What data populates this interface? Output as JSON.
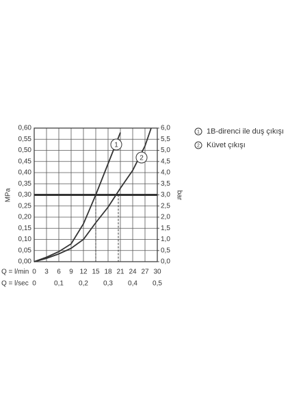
{
  "chart_data": {
    "type": "line",
    "x": [
      0,
      3,
      6,
      9,
      12,
      15,
      18,
      21,
      24,
      27,
      28.5
    ],
    "series": [
      {
        "name": "1B-direnci ile duş çıkışı",
        "label": "1",
        "color": "#333333",
        "values": [
          0,
          0.02,
          0.045,
          0.08,
          0.17,
          0.3,
          0.44,
          0.58,
          null,
          null,
          null
        ]
      },
      {
        "name": "Küvet çıkışı",
        "label": "2",
        "color": "#333333",
        "values": [
          0,
          0.015,
          0.035,
          0.06,
          0.1,
          0.175,
          0.245,
          0.33,
          0.41,
          0.52,
          0.6
        ]
      }
    ],
    "xlim": [
      0,
      30
    ],
    "xticks": [
      0,
      3,
      6,
      9,
      12,
      15,
      18,
      21,
      24,
      27,
      30
    ],
    "x2lim": [
      0,
      0.5
    ],
    "x2ticks": [
      0,
      {
        "value": 0.1,
        "label": "0,1"
      },
      {
        "value": 0.2,
        "label": "0,2"
      },
      {
        "value": 0.3,
        "label": "0,3"
      },
      {
        "value": 0.4,
        "label": "0,4"
      },
      {
        "value": 0.5,
        "label": "0,5"
      }
    ],
    "xlabel": "Q = l/min",
    "x2label": "Q = l/sec",
    "ylim": [
      0,
      0.6
    ],
    "yticks": [
      {
        "value": 0,
        "label": "0,00"
      },
      {
        "value": 0.05,
        "label": "0,05"
      },
      {
        "value": 0.1,
        "label": "0,10"
      },
      {
        "value": 0.15,
        "label": "0,15"
      },
      {
        "value": 0.2,
        "label": "0,20"
      },
      {
        "value": 0.25,
        "label": "0,25"
      },
      {
        "value": 0.3,
        "label": "0,30"
      },
      {
        "value": 0.35,
        "label": "0,35"
      },
      {
        "value": 0.4,
        "label": "0,40"
      },
      {
        "value": 0.45,
        "label": "0,45"
      },
      {
        "value": 0.5,
        "label": "0,50"
      },
      {
        "value": 0.55,
        "label": "0,55"
      },
      {
        "value": 0.6,
        "label": "0,60"
      }
    ],
    "ylabel": "MPa",
    "y2lim": [
      0,
      6
    ],
    "y2ticks": [
      {
        "value": 0,
        "label": "0,0"
      },
      {
        "value": 0.5,
        "label": "0,5"
      },
      {
        "value": 1,
        "label": "1,0"
      },
      {
        "value": 1.5,
        "label": "1,5"
      },
      {
        "value": 2,
        "label": "2,0"
      },
      {
        "value": 2.5,
        "label": "2,5"
      },
      {
        "value": 3,
        "label": "3,0"
      },
      {
        "value": 3.5,
        "label": "3,5"
      },
      {
        "value": 4,
        "label": "4,0"
      },
      {
        "value": 4.5,
        "label": "4,5"
      },
      {
        "value": 5,
        "label": "5,0"
      },
      {
        "value": 5.5,
        "label": "5,5"
      },
      {
        "value": 6,
        "label": "6,0"
      }
    ],
    "y2label": "bar",
    "reference_y": 0.3,
    "reference_x": [
      15,
      20.5
    ],
    "grid": true
  }
}
